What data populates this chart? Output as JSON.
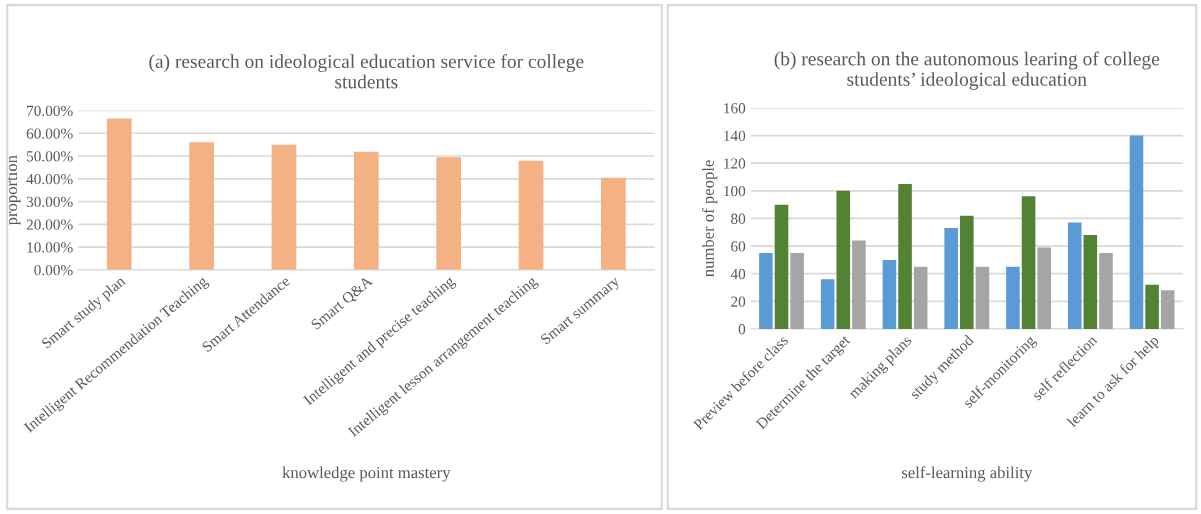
{
  "chart_data": [
    {
      "type": "bar",
      "title": "(a) research on ideological education service for college students",
      "xlabel": "knowledge point mastery",
      "ylabel": "proportion",
      "categories": [
        "Smart study plan",
        "Intelligent Recommendation Teaching",
        "Smart Attendance",
        "Smart Q&A",
        "Intelligent and precise teaching",
        "Intelligent lesson arrangement teaching",
        "Smart summary"
      ],
      "values": [
        66.5,
        56.1,
        55.0,
        51.9,
        49.5,
        47.9,
        40.5
      ],
      "color": "#f4b183",
      "ylim": [
        0,
        70
      ],
      "yticks": [
        {
          "value": 0,
          "label": "0.00%"
        },
        {
          "value": 10,
          "label": "10.00%"
        },
        {
          "value": 20,
          "label": "20.00%"
        },
        {
          "value": 30,
          "label": "30.00%"
        },
        {
          "value": 40,
          "label": "40.00%"
        },
        {
          "value": 50,
          "label": "50.00%"
        },
        {
          "value": 60,
          "label": "60.00%"
        },
        {
          "value": 70,
          "label": "70.00%"
        }
      ],
      "grid": "y",
      "legend": false
    },
    {
      "type": "bar",
      "title": "(b) research on the autonomous learing of college students’ ideological education",
      "xlabel": "self-learning ability",
      "ylabel": "number of people",
      "categories": [
        "Preview before class",
        "Determine the target",
        "making plans",
        "study method",
        "self-monitoring",
        "self reflection",
        "learn to ask for help"
      ],
      "series": [
        {
          "color": "#5b9bd5",
          "values": [
            55,
            36,
            50,
            73,
            45,
            77,
            140
          ]
        },
        {
          "color": "#548235",
          "values": [
            90,
            100,
            105,
            82,
            96,
            68,
            32
          ]
        },
        {
          "color": "#a5a5a5",
          "values": [
            55,
            64,
            45,
            45,
            59,
            55,
            28
          ]
        }
      ],
      "ylim": [
        0,
        160
      ],
      "yticks": [
        0,
        20,
        40,
        60,
        80,
        100,
        120,
        140,
        160
      ],
      "grid": "y",
      "legend": false
    }
  ]
}
